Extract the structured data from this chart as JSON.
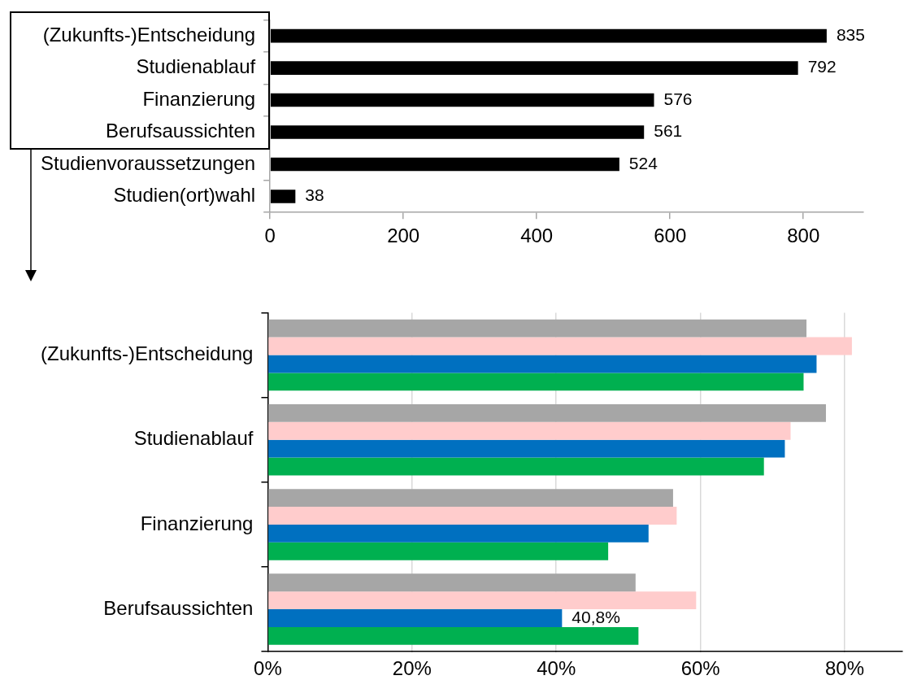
{
  "chart_data": [
    {
      "type": "bar",
      "orientation": "horizontal",
      "categories": [
        "(Zukunfts-)Entscheidung",
        "Studienablauf",
        "Finanzierung",
        "Berufsaussichten",
        "Studienvoraussetzungen",
        "Studien(ort)wahl"
      ],
      "values": [
        835,
        792,
        576,
        561,
        524,
        38
      ],
      "color": "#000000",
      "xlim": [
        0,
        890
      ],
      "xticks": [
        0,
        200,
        400,
        600,
        800
      ],
      "data_labels": true,
      "grid": false,
      "legend": false
    },
    {
      "type": "bar",
      "orientation": "horizontal",
      "categories": [
        "(Zukunfts-)Entscheidung",
        "Studienablauf",
        "Finanzierung",
        "Berufsaussichten"
      ],
      "series": [
        {
          "color": "#a6a6a6",
          "values": [
            74.7,
            77.4,
            56.2,
            51.0
          ]
        },
        {
          "color": "#ffcccc",
          "values": [
            81.0,
            72.5,
            56.7,
            59.4
          ]
        },
        {
          "color": "#0070c0",
          "values": [
            76.1,
            71.7,
            52.8,
            40.8
          ],
          "value_labels": [
            null,
            null,
            null,
            "40,8%"
          ]
        },
        {
          "color": "#00b050",
          "values": [
            74.3,
            68.8,
            47.2,
            51.4
          ]
        }
      ],
      "xlim": [
        0,
        88
      ],
      "xticks": [
        {
          "value": 0,
          "label": "0%"
        },
        {
          "value": 20,
          "label": "20%"
        },
        {
          "value": 40,
          "label": "40%"
        },
        {
          "value": 60,
          "label": "60%"
        },
        {
          "value": 80,
          "label": "80%"
        }
      ],
      "grid": "x",
      "legend": false
    }
  ]
}
